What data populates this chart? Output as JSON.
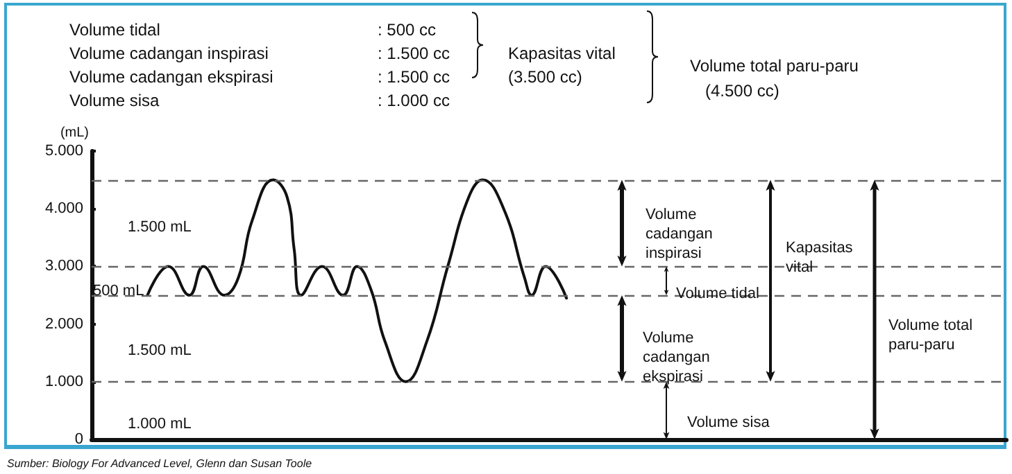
{
  "chart_data": {
    "type": "line",
    "ylabel": "(mL)",
    "categories": [
      null,
      null,
      null,
      null,
      null,
      null,
      null,
      null,
      null,
      null,
      null,
      null,
      null,
      null,
      null,
      null,
      null,
      null,
      null,
      null,
      null,
      null,
      null,
      null,
      null,
      null,
      null,
      null,
      null,
      null,
      null,
      null,
      null,
      null,
      null,
      null,
      null,
      null,
      null,
      null,
      null,
      null,
      null,
      null,
      null,
      null,
      null,
      null,
      null,
      null,
      null,
      null,
      null,
      null,
      null,
      null,
      null,
      null,
      null,
      null,
      null,
      null,
      null,
      null,
      null,
      null,
      null,
      null,
      null,
      null,
      null,
      null,
      null,
      null,
      null,
      null,
      null,
      null,
      null,
      null,
      null,
      null,
      null,
      null,
      null,
      null,
      null,
      null,
      null,
      null,
      null,
      null,
      null,
      null,
      null,
      null,
      null,
      null,
      null,
      null,
      null,
      null,
      null,
      null,
      null,
      null,
      null,
      null,
      null,
      null,
      null,
      null,
      null,
      null,
      null,
      null,
      null,
      null,
      null,
      null,
      null,
      null,
      null,
      null,
      null,
      null,
      null,
      null,
      null,
      null,
      null,
      null
    ],
    "series": [
      {
        "color": "#111111",
        "values": [
          null,
          null,
          null,
          null,
          null,
          null,
          null,
          null,
          2500,
          null,
          null,
          3000,
          null,
          null,
          2500,
          null,
          3000,
          null,
          null,
          2500,
          null,
          2800,
          null,
          3800,
          null,
          null,
          4500,
          null,
          4200,
          3300,
          2500,
          null,
          null,
          3000,
          null,
          null,
          2500,
          null,
          3000,
          null,
          2600,
          null,
          1700,
          null,
          null,
          1000,
          null,
          null,
          1700,
          null,
          null,
          3000,
          null,
          null,
          4200,
          null,
          4500,
          null,
          null,
          4000,
          null,
          null,
          2800,
          2500,
          null,
          3000,
          null,
          null,
          2450,
          null,
          null,
          null,
          null,
          null,
          null,
          null,
          null,
          null,
          null,
          null,
          null,
          null,
          null,
          null,
          null,
          null,
          null,
          null,
          null,
          null,
          null,
          null,
          null,
          null,
          null,
          null,
          null,
          null,
          null,
          null,
          null,
          null,
          null,
          null,
          null,
          null,
          null,
          null,
          null,
          null,
          null,
          null,
          null,
          null,
          null,
          null,
          null,
          null,
          null,
          null,
          null,
          null,
          null,
          null,
          null,
          null,
          null,
          null,
          null,
          null,
          null,
          null
        ]
      }
    ],
    "ylim": [
      0,
      5000
    ],
    "yticks": [
      0,
      {
        "value": 1000,
        "label": "1.000"
      },
      {
        "value": 2000,
        "label": "2.000"
      },
      {
        "value": 3000,
        "label": "3.000"
      },
      {
        "value": 4000,
        "label": "4.000"
      },
      {
        "value": 5000,
        "label": "5.000"
      }
    ],
    "tick_labels": "y",
    "grid": false,
    "line_style": "solid",
    "ref_lines": [
      {
        "axis": "y",
        "value": 4500,
        "color": "#666666",
        "line_style": "dashed"
      },
      {
        "axis": "y",
        "value": 3000,
        "color": "#666666",
        "line_style": "dashed"
      },
      {
        "axis": "y",
        "value": 2500,
        "color": "#666666",
        "line_style": "dashed"
      },
      {
        "axis": "y",
        "value": 1000,
        "color": "#666666",
        "line_style": "dashed"
      }
    ],
    "annotations": [
      "Volume tidal",
      ": 500 cc",
      "Volume cadangan inspirasi",
      ": 1.500 cc",
      "Volume cadangan ekspirasi",
      ": 1.500 cc",
      "Volume sisa",
      ": 1.000 cc",
      "Kapasitas vital",
      "(3.500 cc)",
      "Volume total paru-paru",
      "(4.500 cc)",
      "1.500 mL",
      "500 mL",
      "1.500 mL",
      "1.000 mL",
      "Volume\ncadangan\ninspirasi",
      "Volume tidal",
      "Volume\ncadangan\nekspirasi",
      "Volume sisa",
      "Kapasitas\nvital",
      "Volume total\nparu-paru",
      "Sumber: Biology For Advanced Level, Glenn dan Susan Toole"
    ]
  }
}
